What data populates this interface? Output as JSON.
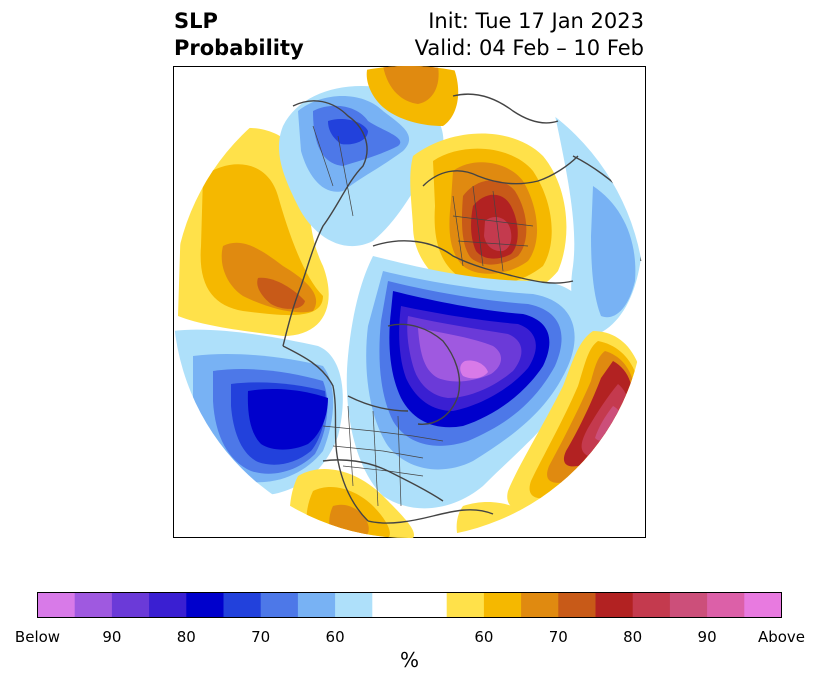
{
  "header": {
    "title_line1": "SLP",
    "title_line2": "Probability",
    "init_text": "Init: Tue 17 Jan 2023",
    "valid_text": "Valid: 04 Feb – 10 Feb"
  },
  "colorbar": {
    "unit": "%",
    "tick_labels": [
      "Below",
      "90",
      "80",
      "70",
      "60",
      "60",
      "70",
      "80",
      "90",
      "Above"
    ],
    "below_colors": [
      "#d87ae8",
      "#9f59e0",
      "#6b3ad8",
      "#3a1fd2",
      "#0000cc",
      "#2241dc",
      "#4d78e8",
      "#78b2f4",
      "#aee0fa"
    ],
    "neutral_color": "#ffffff",
    "above_colors": [
      "#ffe14a",
      "#f5b800",
      "#e08a10",
      "#c85a18",
      "#b22222",
      "#c43a4e",
      "#cc4f7a",
      "#dc60a8",
      "#e87ae0"
    ]
  },
  "map": {
    "projection": "north-polar-stereographic",
    "boundary_color": "#444444"
  }
}
